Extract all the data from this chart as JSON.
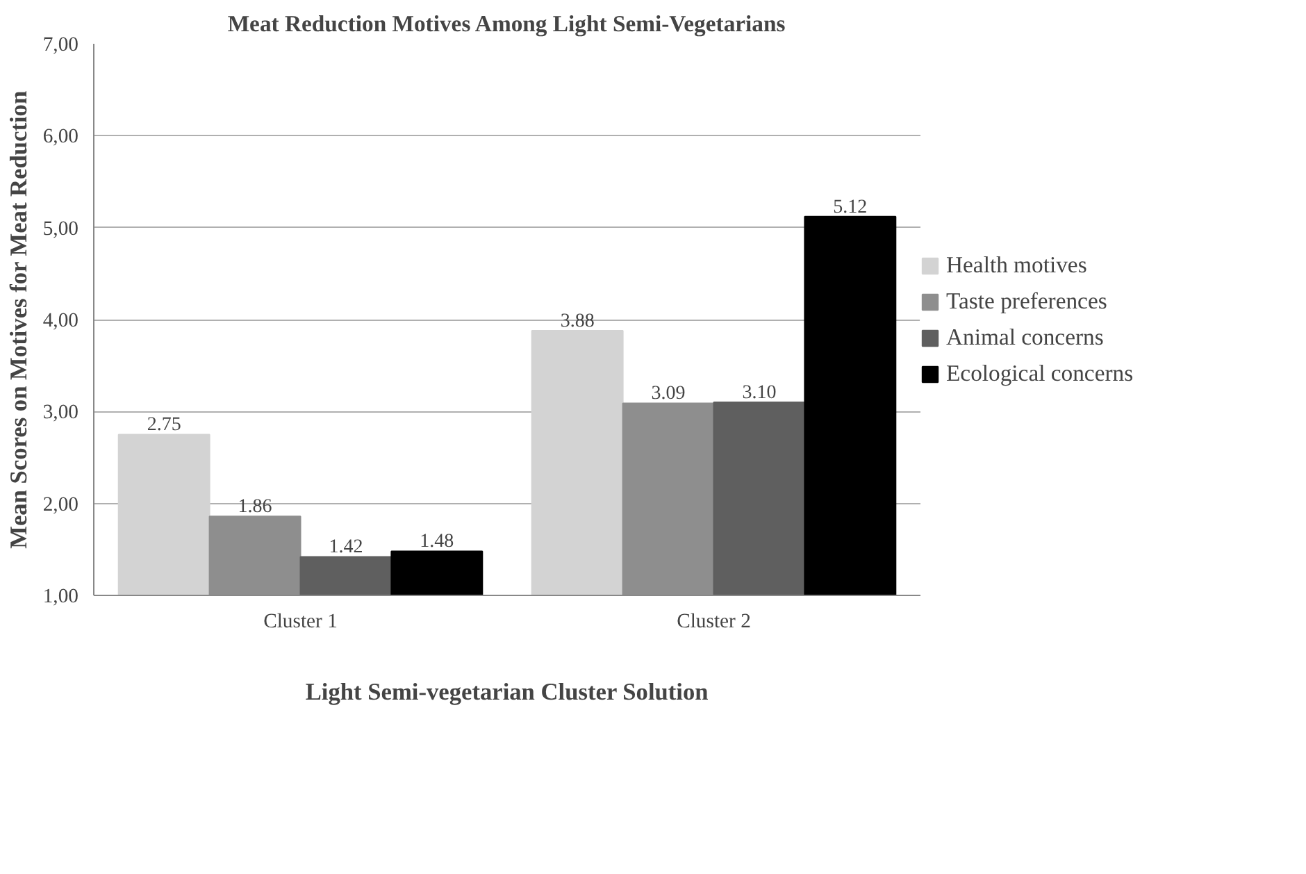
{
  "chart_data": {
    "type": "bar",
    "title": "Meat Reduction Motives Among Light Semi-Vegetarians",
    "xlabel": "Light Semi-vegetarian Cluster Solution",
    "ylabel": "Mean Scores on Motives for Meat Reduction",
    "categories": [
      "Cluster 1",
      "Cluster 2"
    ],
    "series": [
      {
        "name": "Health motives",
        "color": "#d3d3d3",
        "values": [
          2.75,
          3.88
        ]
      },
      {
        "name": "Taste preferences",
        "color": "#8e8e8e",
        "values": [
          1.86,
          3.09
        ]
      },
      {
        "name": "Animal concerns",
        "color": "#5f5f5f",
        "values": [
          1.42,
          3.1
        ]
      },
      {
        "name": "Ecological concerns",
        "color": "#000000",
        "values": [
          1.48,
          5.12
        ]
      }
    ],
    "ylim": [
      1,
      7
    ],
    "yticks": [
      {
        "value": 1,
        "label": "1,00"
      },
      {
        "value": 2,
        "label": "2,00"
      },
      {
        "value": 3,
        "label": "3,00"
      },
      {
        "value": 4,
        "label": "4,00"
      },
      {
        "value": 5,
        "label": "5,00"
      },
      {
        "value": 6,
        "label": "6,00"
      },
      {
        "value": 7,
        "label": "7,00"
      }
    ],
    "grid": "y",
    "legend": "right",
    "value_labels": [
      [
        "2.75",
        "3.88"
      ],
      [
        "1.86",
        "3.09"
      ],
      [
        "1.42",
        "3.10"
      ],
      [
        "1.48",
        "5.12"
      ]
    ]
  }
}
